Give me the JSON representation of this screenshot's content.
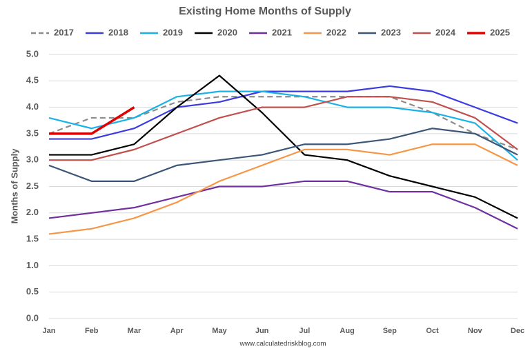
{
  "chart_data": {
    "type": "line",
    "title": "Existing Home Months of Supply",
    "y_label": "Months of Supply",
    "footer": "www.calculatedriskblog.com",
    "categories": [
      "Jan",
      "Feb",
      "Mar",
      "Apr",
      "May",
      "Jun",
      "Jul",
      "Aug",
      "Sep",
      "Oct",
      "Nov",
      "Dec"
    ],
    "ylim": [
      0,
      5
    ],
    "yticks": [
      {
        "value": 0,
        "label": "0.0"
      },
      0.5,
      {
        "value": 1,
        "label": "1.0"
      },
      1.5,
      {
        "value": 2,
        "label": "2.0"
      },
      2.5,
      {
        "value": 3,
        "label": "3.0"
      },
      3.5,
      {
        "value": 4,
        "label": "4.0"
      },
      4.5,
      {
        "value": 5,
        "label": "5.0"
      }
    ],
    "grid": true,
    "legend": "top",
    "series": [
      {
        "name": "2017",
        "color": "#8c8c8c",
        "dashed": true,
        "values": [
          3.5,
          3.8,
          3.8,
          4.1,
          4.2,
          4.2,
          4.2,
          4.2,
          4.2,
          3.9,
          3.5,
          3.2
        ]
      },
      {
        "name": "2018",
        "color": "#3b3be0",
        "values": [
          3.4,
          3.4,
          3.6,
          4.0,
          4.1,
          4.3,
          4.3,
          4.3,
          4.4,
          4.3,
          4.0,
          3.7
        ]
      },
      {
        "name": "2019",
        "color": "#19b2e6",
        "values": [
          3.8,
          3.6,
          3.8,
          4.2,
          4.3,
          4.3,
          4.2,
          4.0,
          4.0,
          3.9,
          3.7,
          3.0
        ]
      },
      {
        "name": "2020",
        "color": "#000000",
        "values": [
          3.1,
          3.1,
          3.3,
          4.0,
          4.6,
          3.9,
          3.1,
          3.0,
          2.7,
          2.5,
          2.3,
          1.9
        ]
      },
      {
        "name": "2021",
        "color": "#7030a0",
        "values": [
          1.9,
          2.0,
          2.1,
          2.3,
          2.5,
          2.5,
          2.6,
          2.6,
          2.4,
          2.4,
          2.1,
          1.7
        ]
      },
      {
        "name": "2022",
        "color": "#f79646",
        "values": [
          1.6,
          1.7,
          1.9,
          2.2,
          2.6,
          2.9,
          3.2,
          3.2,
          3.1,
          3.3,
          3.3,
          2.9
        ]
      },
      {
        "name": "2023",
        "color": "#3b5677",
        "values": [
          2.9,
          2.6,
          2.6,
          2.9,
          3.0,
          3.1,
          3.3,
          3.3,
          3.4,
          3.6,
          3.5,
          3.1
        ]
      },
      {
        "name": "2024",
        "color": "#c0504d",
        "values": [
          3.0,
          3.0,
          3.2,
          3.5,
          3.8,
          4.0,
          4.0,
          4.2,
          4.2,
          4.1,
          3.8,
          3.2
        ]
      },
      {
        "name": "2025",
        "color": "#e00000",
        "thick": true,
        "values": [
          3.5,
          3.5,
          4.0,
          null,
          null,
          null,
          null,
          null,
          null,
          null,
          null,
          null
        ]
      }
    ]
  }
}
